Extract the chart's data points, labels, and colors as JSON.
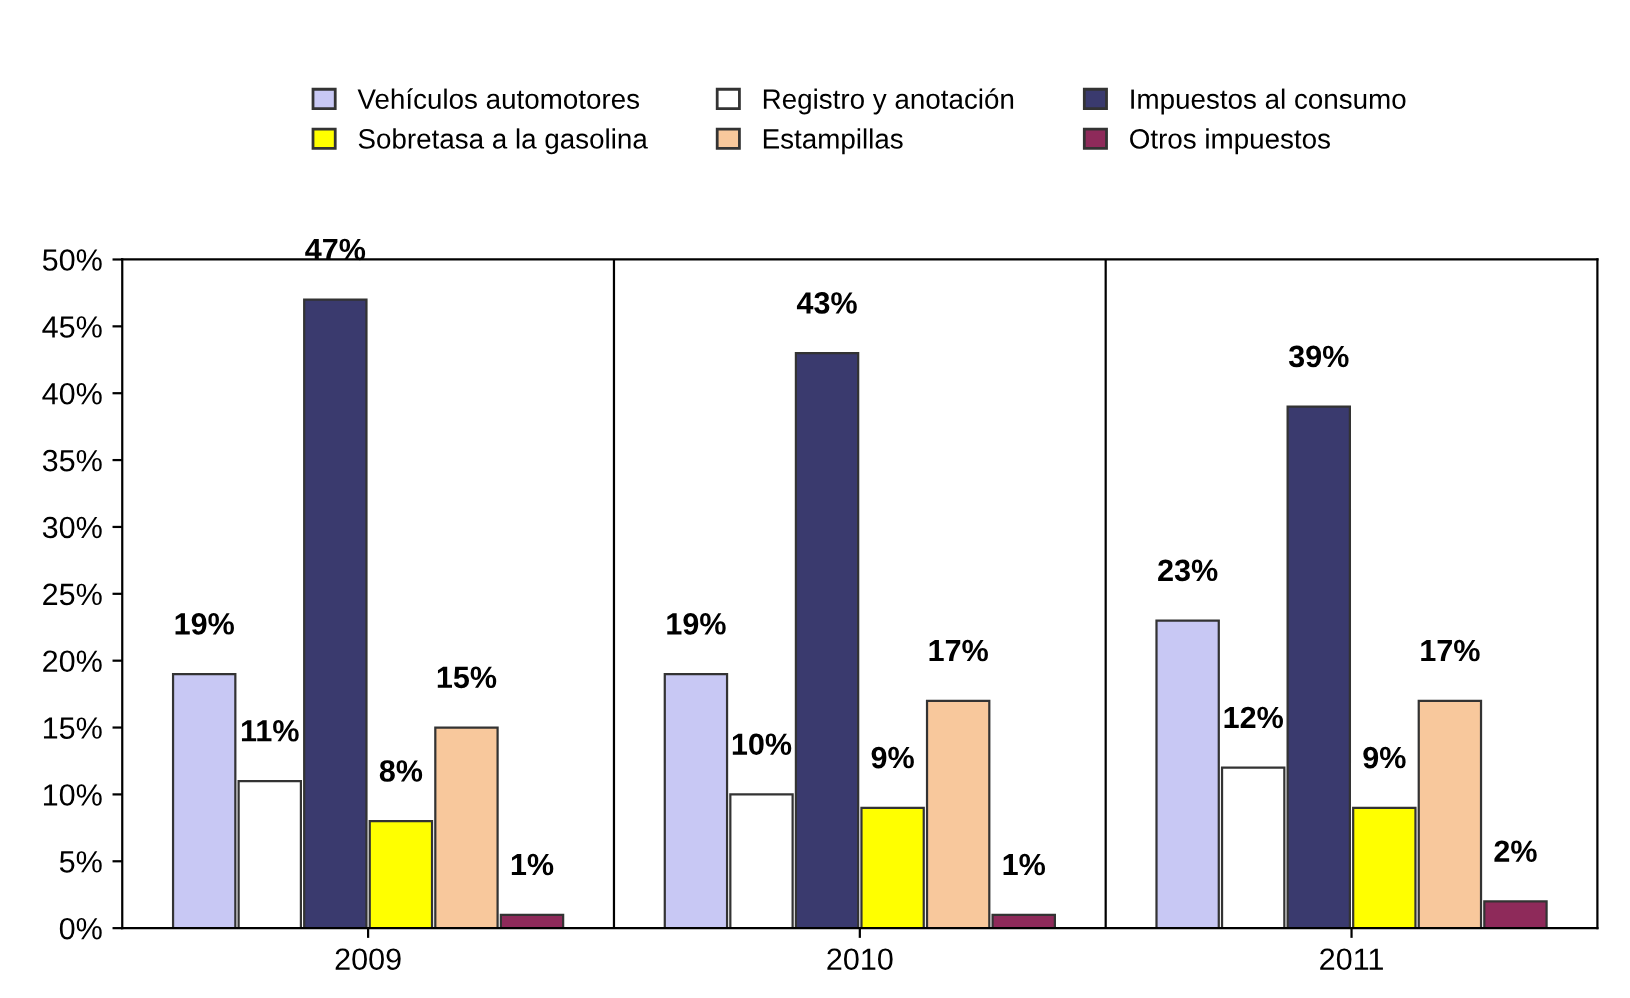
{
  "chart_data": {
    "type": "bar",
    "categories": [
      "2009",
      "2010",
      "2011"
    ],
    "series": [
      {
        "name": "Vehículos automotores",
        "color": "#c8c8f4",
        "values": [
          19,
          19,
          23
        ],
        "value_labels": [
          "19%",
          "19%",
          "23%"
        ]
      },
      {
        "name": "Registro y anotación",
        "color": "#ffffff",
        "values": [
          11,
          10,
          12
        ],
        "value_labels": [
          "11%",
          "10%",
          "12%"
        ]
      },
      {
        "name": "Impuestos al consumo",
        "color": "#3a3a6e",
        "values": [
          47,
          43,
          39
        ],
        "value_labels": [
          "47%",
          "43%",
          "39%"
        ]
      },
      {
        "name": "Sobretasa a la gasolina",
        "color": "#ffff00",
        "values": [
          8,
          9,
          9
        ],
        "value_labels": [
          "8%",
          "9%",
          "9%"
        ]
      },
      {
        "name": "Estampillas",
        "color": "#f8c89c",
        "values": [
          15,
          17,
          17
        ],
        "value_labels": [
          "15%",
          "17%",
          "17%"
        ]
      },
      {
        "name": "Otros impuestos",
        "color": "#8e2a5a",
        "values": [
          1,
          1,
          2
        ],
        "value_labels": [
          "1%",
          "1%",
          "2%"
        ]
      }
    ],
    "ylim": [
      0,
      50
    ],
    "yticks": [
      {
        "value": 0,
        "label": "0%"
      },
      {
        "value": 5,
        "label": "5%"
      },
      {
        "value": 10,
        "label": "10%"
      },
      {
        "value": 15,
        "label": "15%"
      },
      {
        "value": 20,
        "label": "20%"
      },
      {
        "value": 25,
        "label": "25%"
      },
      {
        "value": 30,
        "label": "30%"
      },
      {
        "value": 35,
        "label": "35%"
      },
      {
        "value": 40,
        "label": "40%"
      },
      {
        "value": 45,
        "label": "45%"
      },
      {
        "value": 50,
        "label": "50%"
      }
    ],
    "grid": false,
    "legend": "top"
  }
}
